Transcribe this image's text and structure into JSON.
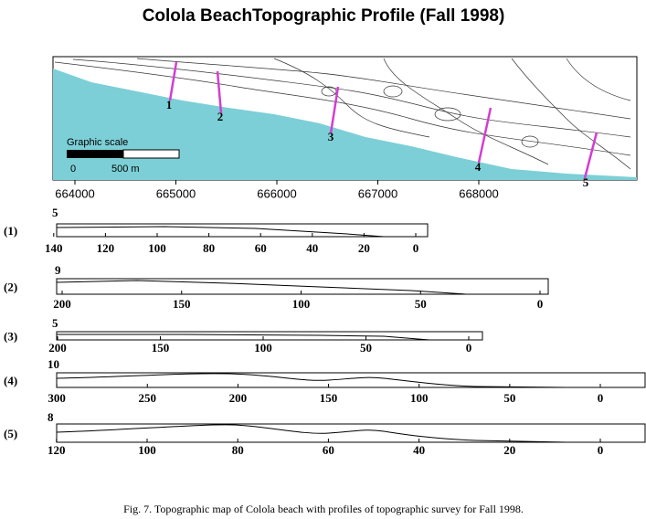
{
  "title": "Colola BeachTopographic Profile (Fall 1998)",
  "map": {
    "xticks": [
      664000,
      665000,
      666000,
      667000,
      668000
    ],
    "scale_title": "Graphic scale",
    "scale_labels": [
      "0",
      "500 m"
    ],
    "transects": [
      "1",
      "2",
      "3",
      "4",
      "5"
    ]
  },
  "profiles": [
    {
      "label": "(1)",
      "ymax": 5,
      "xticks": [
        140,
        120,
        100,
        80,
        60,
        40,
        20,
        0
      ]
    },
    {
      "label": "(2)",
      "ymax": 9,
      "xticks": [
        200,
        150,
        100,
        50,
        0
      ]
    },
    {
      "label": "(3)",
      "ymax": 5,
      "xticks": [
        200,
        150,
        100,
        50,
        0
      ]
    },
    {
      "label": "(4)",
      "ymax": 10,
      "xticks": [
        300,
        250,
        200,
        150,
        100,
        50,
        0
      ]
    },
    {
      "label": "(5)",
      "ymax": 8,
      "xticks": [
        120,
        100,
        80,
        60,
        40,
        20,
        0
      ]
    }
  ],
  "caption": "Fig. 7. Topographic map of Colola beach with profiles of topographic survey for Fall 1998."
}
